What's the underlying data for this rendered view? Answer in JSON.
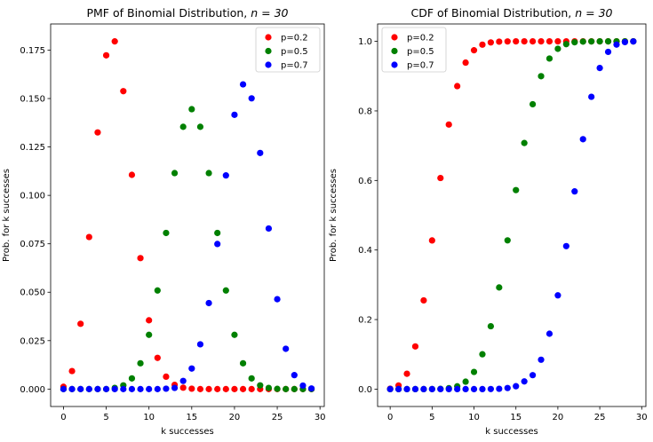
{
  "colors": {
    "p=0.2": "#ff0000",
    "p=0.5": "#008000",
    "p=0.7": "#0000ff"
  },
  "chart_data": [
    {
      "type": "scatter",
      "title_prefix": "PMF of Binomial Distribution, ",
      "title_math": "n = 30",
      "xlabel": "k successes",
      "ylabel": "Prob. for k successes",
      "xlim": [
        -1.5,
        30.5
      ],
      "ylim": [
        -0.009,
        0.1885
      ],
      "xticks": [
        0,
        5,
        10,
        15,
        20,
        25,
        30
      ],
      "xtick_labels": [
        "0",
        "5",
        "10",
        "15",
        "20",
        "25",
        "30"
      ],
      "yticks": [
        0,
        0.025,
        0.05,
        0.075,
        0.1,
        0.125,
        0.15,
        0.175
      ],
      "ytick_labels": [
        "0.000",
        "0.025",
        "0.050",
        "0.075",
        "0.100",
        "0.125",
        "0.150",
        "0.175"
      ],
      "legend_position": "top-right",
      "x": [
        0,
        1,
        2,
        3,
        4,
        5,
        6,
        7,
        8,
        9,
        10,
        11,
        12,
        13,
        14,
        15,
        16,
        17,
        18,
        19,
        20,
        21,
        22,
        23,
        24,
        25,
        26,
        27,
        28,
        29
      ],
      "series": [
        {
          "name": "p=0.2",
          "values": [
            0.0012,
            0.0093,
            0.0337,
            0.0785,
            0.1325,
            0.1723,
            0.1795,
            0.1538,
            0.1106,
            0.0676,
            0.0355,
            0.0161,
            0.0064,
            0.0022,
            0.0007,
            0.0002,
            0,
            0,
            0,
            0,
            0,
            0,
            0,
            0,
            0,
            0,
            0,
            0,
            0,
            0
          ]
        },
        {
          "name": "p=0.5",
          "values": [
            0,
            0,
            0,
            0,
            0,
            0,
            0.0006,
            0.0019,
            0.0055,
            0.0133,
            0.028,
            0.0509,
            0.0806,
            0.1115,
            0.1354,
            0.1445,
            0.1354,
            0.1115,
            0.0806,
            0.0509,
            0.028,
            0.0133,
            0.0055,
            0.0019,
            0.0006,
            0.0001,
            0,
            0,
            0,
            0
          ]
        },
        {
          "name": "p=0.7",
          "values": [
            0,
            0,
            0,
            0,
            0,
            0,
            0,
            0,
            0,
            0,
            0,
            0,
            0.0002,
            0.0006,
            0.0042,
            0.0106,
            0.0231,
            0.0444,
            0.0749,
            0.1103,
            0.1416,
            0.1573,
            0.1501,
            0.1219,
            0.0829,
            0.0464,
            0.0208,
            0.0072,
            0.0018,
            0.0003
          ]
        }
      ]
    },
    {
      "type": "scatter",
      "title_prefix": "CDF of Binomial Distribution, ",
      "title_math": "n = 30",
      "xlabel": "k successes",
      "ylabel": "Prob. for k successes",
      "xlim": [
        -1.5,
        30.5
      ],
      "ylim": [
        -0.05,
        1.05
      ],
      "xticks": [
        0,
        5,
        10,
        15,
        20,
        25,
        30
      ],
      "xtick_labels": [
        "0",
        "5",
        "10",
        "15",
        "20",
        "25",
        "30"
      ],
      "yticks": [
        0,
        0.2,
        0.4,
        0.6,
        0.8,
        1.0
      ],
      "ytick_labels": [
        "0.0",
        "0.2",
        "0.4",
        "0.6",
        "0.8",
        "1.0"
      ],
      "legend_position": "top-left",
      "x": [
        0,
        1,
        2,
        3,
        4,
        5,
        6,
        7,
        8,
        9,
        10,
        11,
        12,
        13,
        14,
        15,
        16,
        17,
        18,
        19,
        20,
        21,
        22,
        23,
        24,
        25,
        26,
        27,
        28,
        29
      ],
      "series": [
        {
          "name": "p=0.2",
          "values": [
            0.0012,
            0.0105,
            0.0442,
            0.1227,
            0.2552,
            0.4275,
            0.607,
            0.7608,
            0.8713,
            0.9389,
            0.9744,
            0.9905,
            0.9969,
            0.9991,
            0.9998,
            1,
            1,
            1,
            1,
            1,
            1,
            1,
            1,
            1,
            1,
            1,
            1,
            1,
            1,
            1
          ]
        },
        {
          "name": "p=0.5",
          "values": [
            0,
            0,
            0,
            0,
            0,
            0.0002,
            0.0007,
            0.0026,
            0.0081,
            0.0214,
            0.0494,
            0.1002,
            0.1808,
            0.2923,
            0.4278,
            0.5722,
            0.7077,
            0.8192,
            0.8998,
            0.9506,
            0.9786,
            0.9919,
            0.9974,
            0.9993,
            0.9998,
            1,
            1,
            1,
            1,
            1
          ]
        },
        {
          "name": "p=0.7",
          "values": [
            0,
            0,
            0,
            0,
            0,
            0,
            0,
            0,
            0,
            0,
            0,
            0,
            0.0003,
            0.0009,
            0.0031,
            0.0083,
            0.0221,
            0.0401,
            0.0845,
            0.1593,
            0.2696,
            0.4112,
            0.5685,
            0.7186,
            0.8405,
            0.9234,
            0.9698,
            0.9907,
            0.9979,
            0.9998
          ]
        }
      ]
    }
  ]
}
